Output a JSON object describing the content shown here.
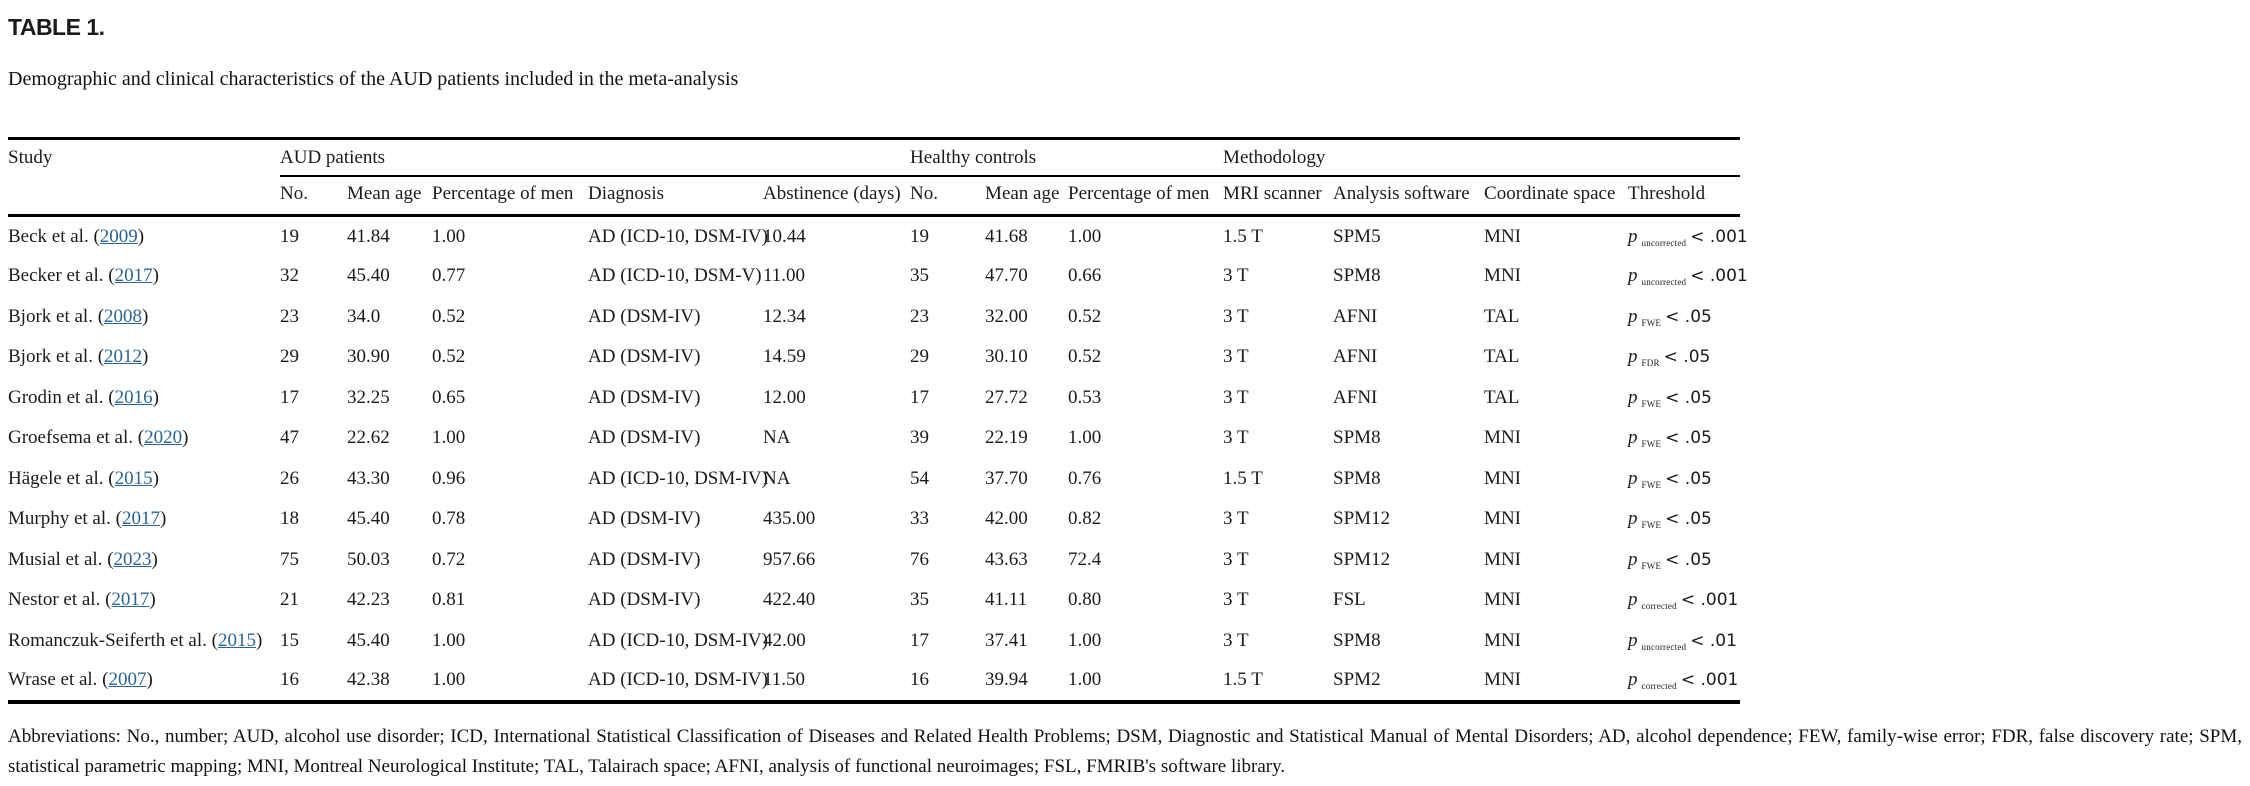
{
  "page": {
    "title": "TABLE 1.",
    "caption": "Demographic and clinical characteristics of the AUD patients included in the meta-analysis",
    "footnote": "Abbreviations: No., number; AUD, alcohol use disorder; ICD, International Statistical Classification of Diseases and Related Health Problems; DSM, Diagnostic and Statistical Manual of Mental Disorders; AD, alcohol dependence; FEW, family-wise error; FDR, false discovery rate; SPM, statistical parametric mapping; MNI, Montreal Neurological Institute; TAL, Talairach space; AFNI, analysis of functional neuroimages; FSL, FMRIB's software library."
  },
  "colors": {
    "link_blue": "#2a6496",
    "text": "#1b1b1b",
    "rule": "#000000"
  },
  "table": {
    "study_header": "Study",
    "groups": [
      "AUD patients",
      "Healthy controls",
      "Methodology"
    ],
    "subheaders": [
      "No.",
      "Mean age",
      "Percentage of men",
      "Diagnosis",
      "Abstinence (days)",
      "No.",
      "Mean age",
      "Percentage of men",
      "MRI scanner",
      "Analysis software",
      "Coordinate space",
      "Threshold"
    ],
    "p_symbol": "p",
    "rows": [
      {
        "study": "Beck et al.",
        "year": "2009",
        "aud_no": "19",
        "aud_mean_age": "41.84",
        "aud_pct_men": "1.00",
        "diagnosis": "AD (ICD-10, DSM-IV)",
        "abstinence": "10.44",
        "hc_no": "19",
        "hc_mean_age": "41.68",
        "hc_pct_men": "1.00",
        "scanner": "1.5 T",
        "software": "SPM5",
        "space": "MNI",
        "thr_sub": "uncorrected",
        "thr_cmp": "< .001"
      },
      {
        "study": "Becker et al.",
        "year": "2017",
        "aud_no": "32",
        "aud_mean_age": "45.40",
        "aud_pct_men": "0.77",
        "diagnosis": "AD (ICD-10, DSM-V)",
        "abstinence": "11.00",
        "hc_no": "35",
        "hc_mean_age": "47.70",
        "hc_pct_men": "0.66",
        "scanner": "3 T",
        "software": "SPM8",
        "space": "MNI",
        "thr_sub": "uncorrected",
        "thr_cmp": "< .001"
      },
      {
        "study": "Bjork et al.",
        "year": "2008",
        "aud_no": "23",
        "aud_mean_age": "34.0",
        "aud_pct_men": "0.52",
        "diagnosis": "AD (DSM-IV)",
        "abstinence": "12.34",
        "hc_no": "23",
        "hc_mean_age": "32.00",
        "hc_pct_men": "0.52",
        "scanner": "3 T",
        "software": "AFNI",
        "space": "TAL",
        "thr_sub": "FWE",
        "thr_cmp": "< .05"
      },
      {
        "study": "Bjork et al.",
        "year": "2012",
        "aud_no": "29",
        "aud_mean_age": "30.90",
        "aud_pct_men": "0.52",
        "diagnosis": "AD (DSM-IV)",
        "abstinence": "14.59",
        "hc_no": "29",
        "hc_mean_age": "30.10",
        "hc_pct_men": "0.52",
        "scanner": "3 T",
        "software": "AFNI",
        "space": "TAL",
        "thr_sub": "FDR",
        "thr_cmp": "< .05"
      },
      {
        "study": "Grodin et al.",
        "year": "2016",
        "aud_no": "17",
        "aud_mean_age": "32.25",
        "aud_pct_men": "0.65",
        "diagnosis": "AD (DSM-IV)",
        "abstinence": "12.00",
        "hc_no": "17",
        "hc_mean_age": "27.72",
        "hc_pct_men": "0.53",
        "scanner": "3 T",
        "software": "AFNI",
        "space": "TAL",
        "thr_sub": "FWE",
        "thr_cmp": "< .05"
      },
      {
        "study": "Groefsema et al.",
        "year": "2020",
        "aud_no": "47",
        "aud_mean_age": "22.62",
        "aud_pct_men": "1.00",
        "diagnosis": "AD (DSM-IV)",
        "abstinence": "NA",
        "hc_no": "39",
        "hc_mean_age": "22.19",
        "hc_pct_men": "1.00",
        "scanner": "3 T",
        "software": "SPM8",
        "space": "MNI",
        "thr_sub": "FWE",
        "thr_cmp": "< .05"
      },
      {
        "study": "Hägele et al.",
        "year": "2015",
        "aud_no": "26",
        "aud_mean_age": "43.30",
        "aud_pct_men": "0.96",
        "diagnosis": "AD (ICD-10, DSM-IV)",
        "abstinence": "NA",
        "hc_no": "54",
        "hc_mean_age": "37.70",
        "hc_pct_men": "0.76",
        "scanner": "1.5 T",
        "software": "SPM8",
        "space": "MNI",
        "thr_sub": "FWE",
        "thr_cmp": "< .05"
      },
      {
        "study": "Murphy et al.",
        "year": "2017",
        "aud_no": "18",
        "aud_mean_age": "45.40",
        "aud_pct_men": "0.78",
        "diagnosis": "AD (DSM-IV)",
        "abstinence": "435.00",
        "hc_no": "33",
        "hc_mean_age": "42.00",
        "hc_pct_men": "0.82",
        "scanner": "3 T",
        "software": "SPM12",
        "space": "MNI",
        "thr_sub": "FWE",
        "thr_cmp": "< .05"
      },
      {
        "study": "Musial et al.",
        "year": "2023",
        "aud_no": "75",
        "aud_mean_age": "50.03",
        "aud_pct_men": "0.72",
        "diagnosis": "AD (DSM-IV)",
        "abstinence": "957.66",
        "hc_no": "76",
        "hc_mean_age": "43.63",
        "hc_pct_men": "72.4",
        "scanner": "3 T",
        "software": "SPM12",
        "space": "MNI",
        "thr_sub": "FWE",
        "thr_cmp": "< .05"
      },
      {
        "study": "Nestor et al.",
        "year": "2017",
        "aud_no": "21",
        "aud_mean_age": "42.23",
        "aud_pct_men": "0.81",
        "diagnosis": "AD (DSM-IV)",
        "abstinence": "422.40",
        "hc_no": "35",
        "hc_mean_age": "41.11",
        "hc_pct_men": "0.80",
        "scanner": "3 T",
        "software": "FSL",
        "space": "MNI",
        "thr_sub": "corrected",
        "thr_cmp": "< .001"
      },
      {
        "study": "Romanczuk-Seiferth et al.",
        "year": "2015",
        "aud_no": "15",
        "aud_mean_age": "45.40",
        "aud_pct_men": "1.00",
        "diagnosis": "AD (ICD-10, DSM-IV)",
        "abstinence": "42.00",
        "hc_no": "17",
        "hc_mean_age": "37.41",
        "hc_pct_men": "1.00",
        "scanner": "3 T",
        "software": "SPM8",
        "space": "MNI",
        "thr_sub": "uncorrected",
        "thr_cmp": "< .01"
      },
      {
        "study": "Wrase et al.",
        "year": "2007",
        "aud_no": "16",
        "aud_mean_age": "42.38",
        "aud_pct_men": "1.00",
        "diagnosis": "AD (ICD-10, DSM-IV)",
        "abstinence": "11.50",
        "hc_no": "16",
        "hc_mean_age": "39.94",
        "hc_pct_men": "1.00",
        "scanner": "1.5 T",
        "software": "SPM2",
        "space": "MNI",
        "thr_sub": "corrected",
        "thr_cmp": "< .001"
      }
    ]
  }
}
